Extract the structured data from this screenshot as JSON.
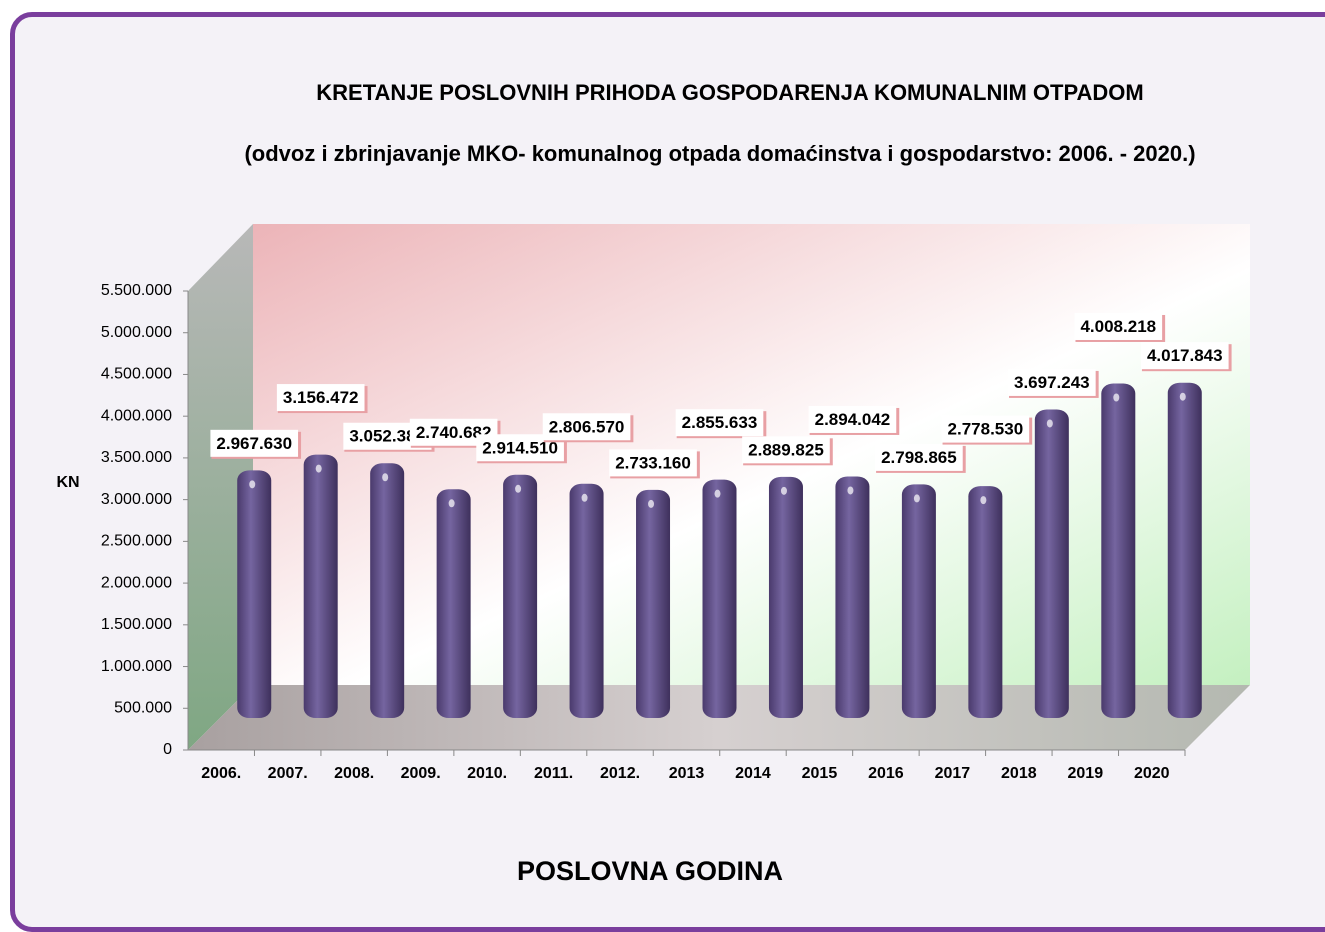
{
  "chart_data": {
    "type": "bar3d",
    "title": "KRETANJE POSLOVNIH PRIHODA  GOSPODARENJA KOMUNALNIM OTPADOM",
    "subtitle": "(odvoz i zbrinjavanje MKO- komunalnog otpada domaćinstva i gospodarstvo: 2006. - 2020.)",
    "y_label": "KN",
    "x_label": "POSLOVNA GODINA",
    "categories": [
      "2006.",
      "2007.",
      "2008.",
      "2009.",
      "2010.",
      "2011.",
      "2012.",
      "2013",
      "2014",
      "2015",
      "2016",
      "2017",
      "2018",
      "2019",
      "2020"
    ],
    "values": [
      2967630,
      3156472,
      3052384,
      2740682,
      2914510,
      2806570,
      2733160,
      2855633,
      2889825,
      2894042,
      2798865,
      2778530,
      3697243,
      4008218,
      4017843
    ],
    "value_labels": [
      "2.967.630",
      "3.156.472",
      "3.052.384",
      "2.740.682",
      "2.914.510",
      "2.806.570",
      "2.733.160",
      "2.855.633",
      "2.889.825",
      "2.894.042",
      "2.798.865",
      "2.778.530",
      "3.697.243",
      "4.008.218",
      "4.017.843"
    ],
    "color": "#5b4a80",
    "ylim": [
      0,
      5500000
    ],
    "yticks": [
      0,
      {
        "value": 500000,
        "label": "500.000"
      },
      {
        "value": 1000000,
        "label": "1.000.000"
      },
      {
        "value": 1500000,
        "label": "1.500.000"
      },
      {
        "value": 2000000,
        "label": "2.000.000"
      },
      {
        "value": 2500000,
        "label": "2.500.000"
      },
      {
        "value": 3000000,
        "label": "3.000.000"
      },
      {
        "value": 3500000,
        "label": "3.500.000"
      },
      {
        "value": 4000000,
        "label": "4.000.000"
      },
      {
        "value": 4500000,
        "label": "4.500.000"
      },
      {
        "value": 5000000,
        "label": "5.000.000"
      },
      {
        "value": 5500000,
        "label": "5.500.000"
      }
    ],
    "grid": false
  }
}
